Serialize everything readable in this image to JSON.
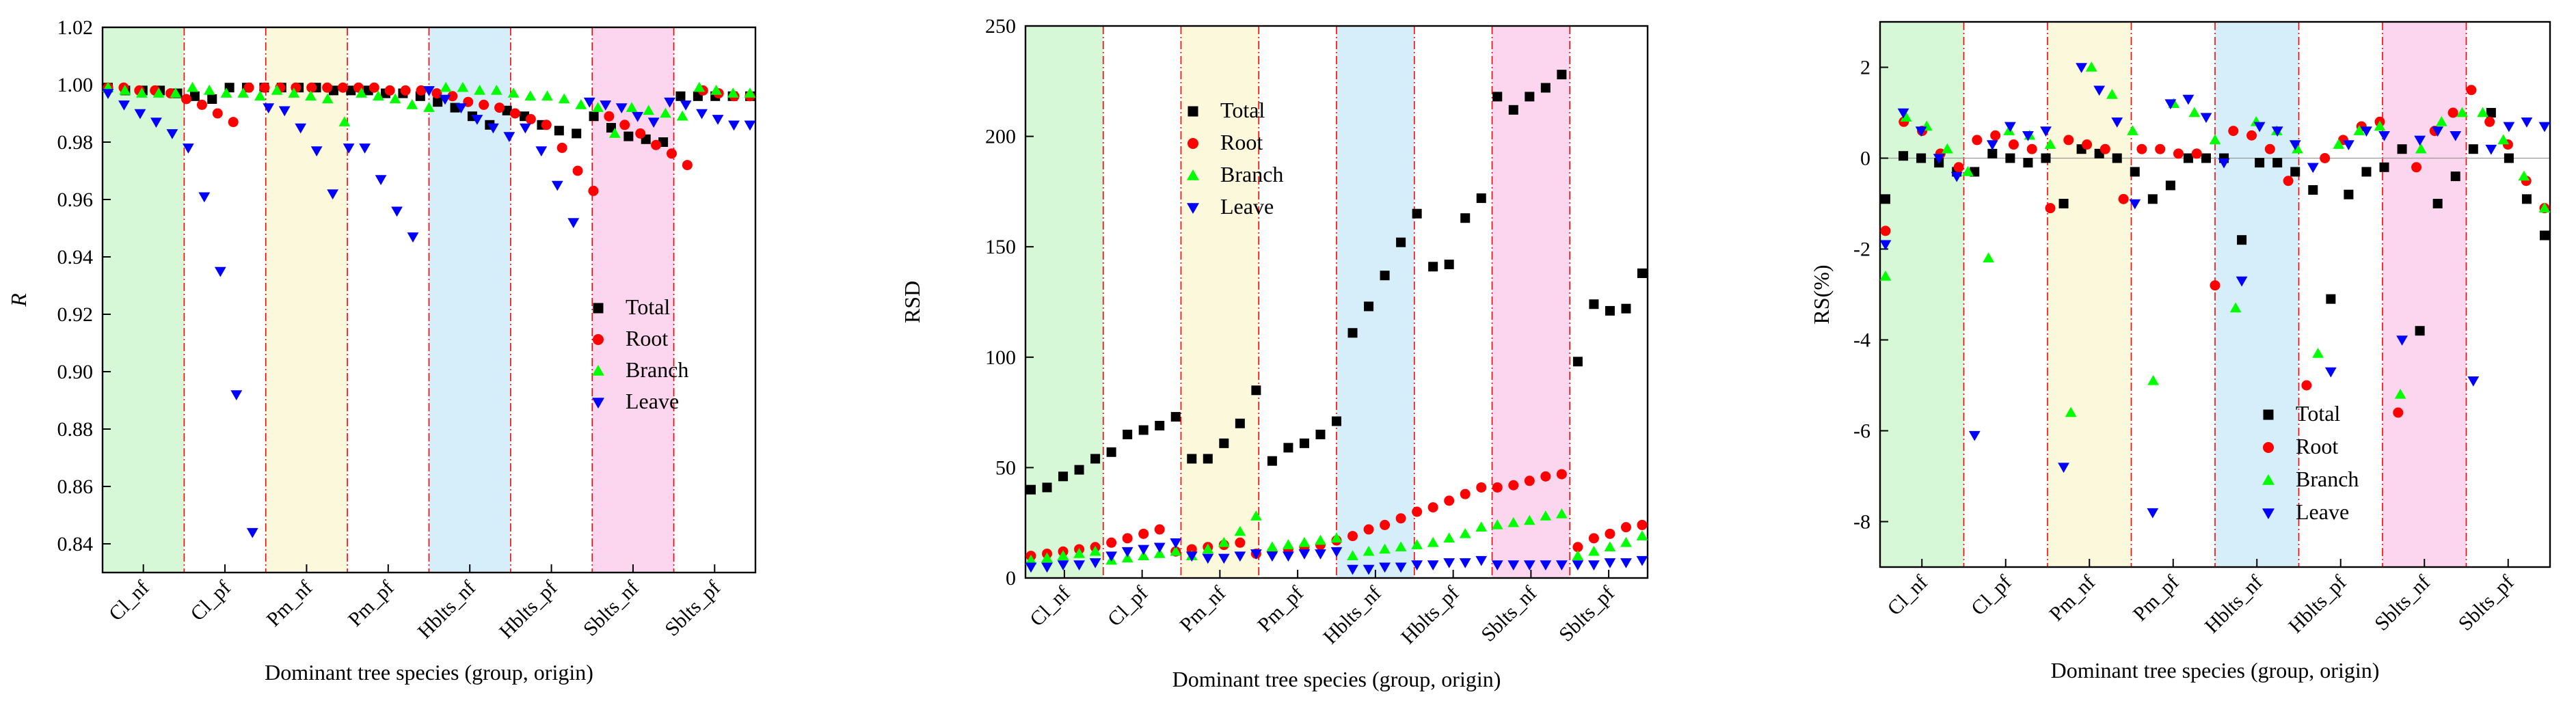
{
  "colors": {
    "total": "#000000",
    "root": "#ff0000",
    "branch": "#00ff00",
    "leave": "#0000ff",
    "axis": "#000000",
    "divider": "#ff0000",
    "band_green": "#d6f8d6",
    "band_yellow": "#fcf8dc",
    "band_blue": "#d6eefa",
    "band_pink": "#fcd6ee"
  },
  "shared": {
    "xlabel": "Dominant tree species (group, origin)",
    "categories": [
      "Cl_nf",
      "Cl_pf",
      "Pm_nf",
      "Pm_pf",
      "Hblts_nf",
      "Hblts_pf",
      "Sblts_nf",
      "Sblts_pf"
    ],
    "legend": [
      "Total",
      "Root",
      "Branch",
      "Leave"
    ],
    "band_colors": [
      "band_green",
      "",
      "band_yellow",
      "",
      "band_blue",
      "",
      "band_pink",
      ""
    ]
  },
  "chart_data": [
    {
      "type": "scatter",
      "title": "",
      "ylabel": "R",
      "ylim": [
        0.83,
        1.02
      ],
      "yticks": [
        "0.84",
        "0.86",
        "0.88",
        "0.90",
        "0.92",
        "0.94",
        "0.96",
        "0.98",
        "1.00",
        "1.02"
      ],
      "legend_position": "center-right",
      "categories": [
        "Cl_nf",
        "Cl_pf",
        "Pm_nf",
        "Pm_pf",
        "Hblts_nf",
        "Hblts_pf",
        "Sblts_nf",
        "Sblts_pf"
      ],
      "series": [
        {
          "name": "Total",
          "values": [
            0.999,
            0.998,
            0.998,
            0.998,
            0.997,
            0.996,
            0.995,
            0.999,
            0.999,
            0.999,
            0.999,
            0.999,
            0.999,
            0.998,
            0.998,
            0.998,
            0.997,
            0.997,
            0.996,
            0.994,
            0.992,
            0.989,
            0.986,
            0.991,
            0.989,
            0.986,
            0.984,
            0.983,
            0.989,
            0.985,
            0.982,
            0.981,
            0.98,
            0.996,
            0.996,
            0.996,
            0.996,
            0.996
          ]
        },
        {
          "name": "Root",
          "values": [
            0.999,
            0.999,
            0.998,
            0.998,
            0.997,
            0.995,
            0.993,
            0.99,
            0.987,
            0.999,
            0.999,
            0.999,
            0.999,
            0.999,
            0.999,
            0.999,
            0.999,
            0.999,
            0.998,
            0.998,
            0.998,
            0.997,
            0.996,
            0.994,
            0.993,
            0.992,
            0.99,
            0.988,
            0.986,
            0.978,
            0.97,
            0.963,
            0.989,
            0.986,
            0.983,
            0.979,
            0.976,
            0.972,
            0.998,
            0.997,
            0.996,
            0.996
          ]
        },
        {
          "name": "Branch",
          "values": [
            0.999,
            0.998,
            0.997,
            0.997,
            0.997,
            0.999,
            0.998,
            0.997,
            0.997,
            0.996,
            0.998,
            0.997,
            0.996,
            0.995,
            0.987,
            0.997,
            0.996,
            0.995,
            0.993,
            0.992,
            0.999,
            0.999,
            0.998,
            0.998,
            0.997,
            0.996,
            0.996,
            0.995,
            0.993,
            0.992,
            0.983,
            0.992,
            0.991,
            0.99,
            0.989,
            0.999,
            0.998,
            0.997,
            0.997
          ]
        },
        {
          "name": "Leave",
          "values": [
            0.997,
            0.993,
            0.99,
            0.987,
            0.983,
            0.978,
            0.961,
            0.935,
            0.892,
            0.844,
            0.992,
            0.991,
            0.985,
            0.977,
            0.962,
            0.978,
            0.978,
            0.967,
            0.956,
            0.947,
            0.998,
            0.995,
            0.992,
            0.988,
            0.985,
            0.982,
            0.985,
            0.977,
            0.965,
            0.952,
            0.994,
            0.993,
            0.992,
            0.989,
            0.987,
            0.994,
            0.993,
            0.99,
            0.988,
            0.986,
            0.986
          ]
        }
      ]
    },
    {
      "type": "scatter",
      "title": "",
      "ylabel": "RSD",
      "ylim": [
        0,
        250
      ],
      "yticks": [
        "0",
        "50",
        "100",
        "150",
        "200",
        "250"
      ],
      "legend_position": "top-center",
      "categories": [
        "Cl_nf",
        "Cl_pf",
        "Pm_nf",
        "Pm_pf",
        "Hblts_nf",
        "Hblts_pf",
        "Sblts_nf",
        "Sblts_pf"
      ],
      "series": [
        {
          "name": "Total",
          "values": [
            40,
            41,
            46,
            49,
            54,
            57,
            65,
            67,
            69,
            73,
            54,
            54,
            61,
            70,
            85,
            53,
            59,
            61,
            65,
            71,
            111,
            123,
            137,
            152,
            165,
            141,
            142,
            163,
            172,
            218,
            212,
            218,
            222,
            228,
            98,
            124,
            121,
            122,
            138
          ]
        },
        {
          "name": "Root",
          "values": [
            10,
            11,
            12,
            13,
            14,
            16,
            18,
            20,
            22,
            12,
            13,
            14,
            15,
            16,
            11,
            12,
            13,
            14,
            15,
            17,
            19,
            22,
            24,
            27,
            30,
            32,
            35,
            38,
            41,
            41,
            42,
            44,
            46,
            47,
            14,
            18,
            20,
            23,
            24
          ]
        },
        {
          "name": "Branch",
          "values": [
            8,
            9,
            10,
            11,
            12,
            8,
            9,
            10,
            11,
            12,
            10,
            13,
            16,
            21,
            28,
            14,
            15,
            16,
            17,
            18,
            10,
            12,
            13,
            14,
            15,
            16,
            18,
            20,
            23,
            24,
            25,
            26,
            28,
            29,
            10,
            12,
            14,
            16,
            19
          ]
        },
        {
          "name": "Leave",
          "values": [
            5,
            5,
            6,
            6,
            7,
            10,
            12,
            13,
            14,
            16,
            10,
            9,
            9,
            10,
            11,
            10,
            10,
            11,
            11,
            12,
            4,
            4,
            5,
            5,
            6,
            6,
            7,
            7,
            8,
            6,
            6,
            6,
            6,
            6,
            6,
            6,
            7,
            7,
            8
          ]
        }
      ]
    },
    {
      "type": "scatter",
      "title": "",
      "ylabel": "RS(%)",
      "ylim": [
        -9,
        3
      ],
      "yticks": [
        "-8",
        "-6",
        "-4",
        "-2",
        "0",
        "2"
      ],
      "legend_position": "bottom-center",
      "categories": [
        "Cl_nf",
        "Cl_pf",
        "Pm_nf",
        "Pm_pf",
        "Hblts_nf",
        "Hblts_pf",
        "Sblts_nf",
        "Sblts_pf"
      ],
      "series": [
        {
          "name": "Total",
          "values": [
            -0.9,
            0.05,
            0.0,
            -0.1,
            -0.3,
            -0.3,
            0.1,
            0.0,
            -0.1,
            0.0,
            -1.0,
            0.2,
            0.1,
            0.0,
            -0.3,
            -0.9,
            -0.6,
            0.0,
            0.0,
            0.0,
            -1.8,
            -0.1,
            -0.1,
            -0.3,
            -0.7,
            -3.1,
            -0.8,
            -0.3,
            -0.2,
            0.2,
            -3.8,
            -1.0,
            -0.4,
            0.2,
            1.0,
            0.0,
            -0.9,
            -1.7
          ]
        },
        {
          "name": "Root",
          "values": [
            -1.6,
            0.8,
            0.6,
            0.1,
            -0.2,
            0.4,
            0.5,
            0.3,
            0.2,
            -1.1,
            0.4,
            0.3,
            0.2,
            -0.9,
            0.2,
            0.2,
            0.1,
            0.1,
            -2.8,
            0.6,
            0.5,
            0.2,
            -0.5,
            -5.0,
            0.0,
            0.4,
            0.7,
            0.8,
            -5.6,
            -0.2,
            0.6,
            1.0,
            1.5,
            0.8,
            0.3,
            -0.5,
            -1.1
          ]
        },
        {
          "name": "Branch",
          "values": [
            -2.6,
            0.9,
            0.7,
            0.2,
            -0.3,
            -2.2,
            0.6,
            0.5,
            0.3,
            -5.6,
            2.0,
            1.4,
            0.6,
            -4.9,
            1.2,
            1.0,
            0.4,
            -3.3,
            0.8,
            0.6,
            0.2,
            -4.3,
            0.3,
            0.6,
            0.7,
            -5.2,
            0.2,
            0.8,
            1.0,
            1.0,
            0.4,
            -0.4,
            -1.1
          ]
        },
        {
          "name": "Leave",
          "values": [
            -1.9,
            1.0,
            0.6,
            0.0,
            -0.4,
            -6.1,
            0.3,
            0.7,
            0.5,
            0.6,
            -6.8,
            2.0,
            1.5,
            0.8,
            -1.0,
            -7.8,
            1.2,
            1.3,
            0.9,
            -0.1,
            -2.7,
            0.7,
            0.6,
            0.3,
            -0.2,
            -4.7,
            0.3,
            0.6,
            0.5,
            -4.0,
            0.4,
            0.6,
            0.5,
            -4.9,
            0.2,
            0.7,
            0.8,
            0.7
          ]
        }
      ]
    }
  ]
}
